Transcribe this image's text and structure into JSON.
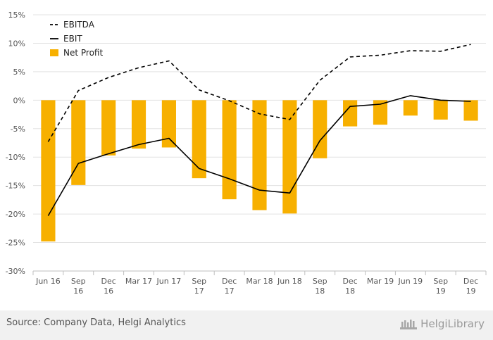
{
  "chart_data": {
    "type": "bar",
    "title": "",
    "xlabel": "",
    "ylabel": "",
    "ylim": [
      -30,
      15
    ],
    "yticks": [
      15,
      10,
      5,
      0,
      -5,
      -10,
      -15,
      -20,
      -25,
      -30
    ],
    "ytick_labels": [
      "15%",
      "10%",
      "5%",
      "0%",
      "-5%",
      "-10%",
      "-15%",
      "-20%",
      "-25%",
      "-30%"
    ],
    "categories": [
      [
        "Jun 16"
      ],
      [
        "Sep",
        "16"
      ],
      [
        "Dec",
        "16"
      ],
      [
        "Mar 17"
      ],
      [
        "Jun 17"
      ],
      [
        "Sep",
        "17"
      ],
      [
        "Dec",
        "17"
      ],
      [
        "Mar 18"
      ],
      [
        "Jun 18"
      ],
      [
        "Sep",
        "18"
      ],
      [
        "Dec",
        "18"
      ],
      [
        "Mar 19"
      ],
      [
        "Jun 19"
      ],
      [
        "Sep",
        "19"
      ],
      [
        "Dec",
        "19"
      ]
    ],
    "grid": true,
    "legend_position": "top-left",
    "series": [
      {
        "name": "EBITDA",
        "type": "line",
        "style": "dashed",
        "color": "#000000",
        "values": [
          -7.3,
          1.7,
          4.0,
          5.7,
          6.9,
          1.8,
          -0.1,
          -2.4,
          -3.4,
          3.5,
          7.6,
          7.9,
          8.7,
          8.6,
          9.8
        ]
      },
      {
        "name": "EBIT",
        "type": "line",
        "style": "solid",
        "color": "#000000",
        "values": [
          -20.3,
          -11.1,
          -9.4,
          -7.8,
          -6.7,
          -12.0,
          -13.8,
          -15.8,
          -16.3,
          -7.1,
          -1.1,
          -0.7,
          0.8,
          0.0,
          -0.2
        ]
      },
      {
        "name": "Net Profit",
        "type": "bar",
        "color": "#f7b000",
        "values": [
          -24.8,
          -14.9,
          -9.7,
          -8.5,
          -8.3,
          -13.7,
          -17.4,
          -19.3,
          -19.9,
          -10.2,
          -4.6,
          -4.3,
          -2.7,
          -3.4,
          -3.6
        ]
      }
    ]
  },
  "footer": {
    "source": "Source: Company Data, Helgi Analytics",
    "brand": "HelgiLibrary"
  }
}
